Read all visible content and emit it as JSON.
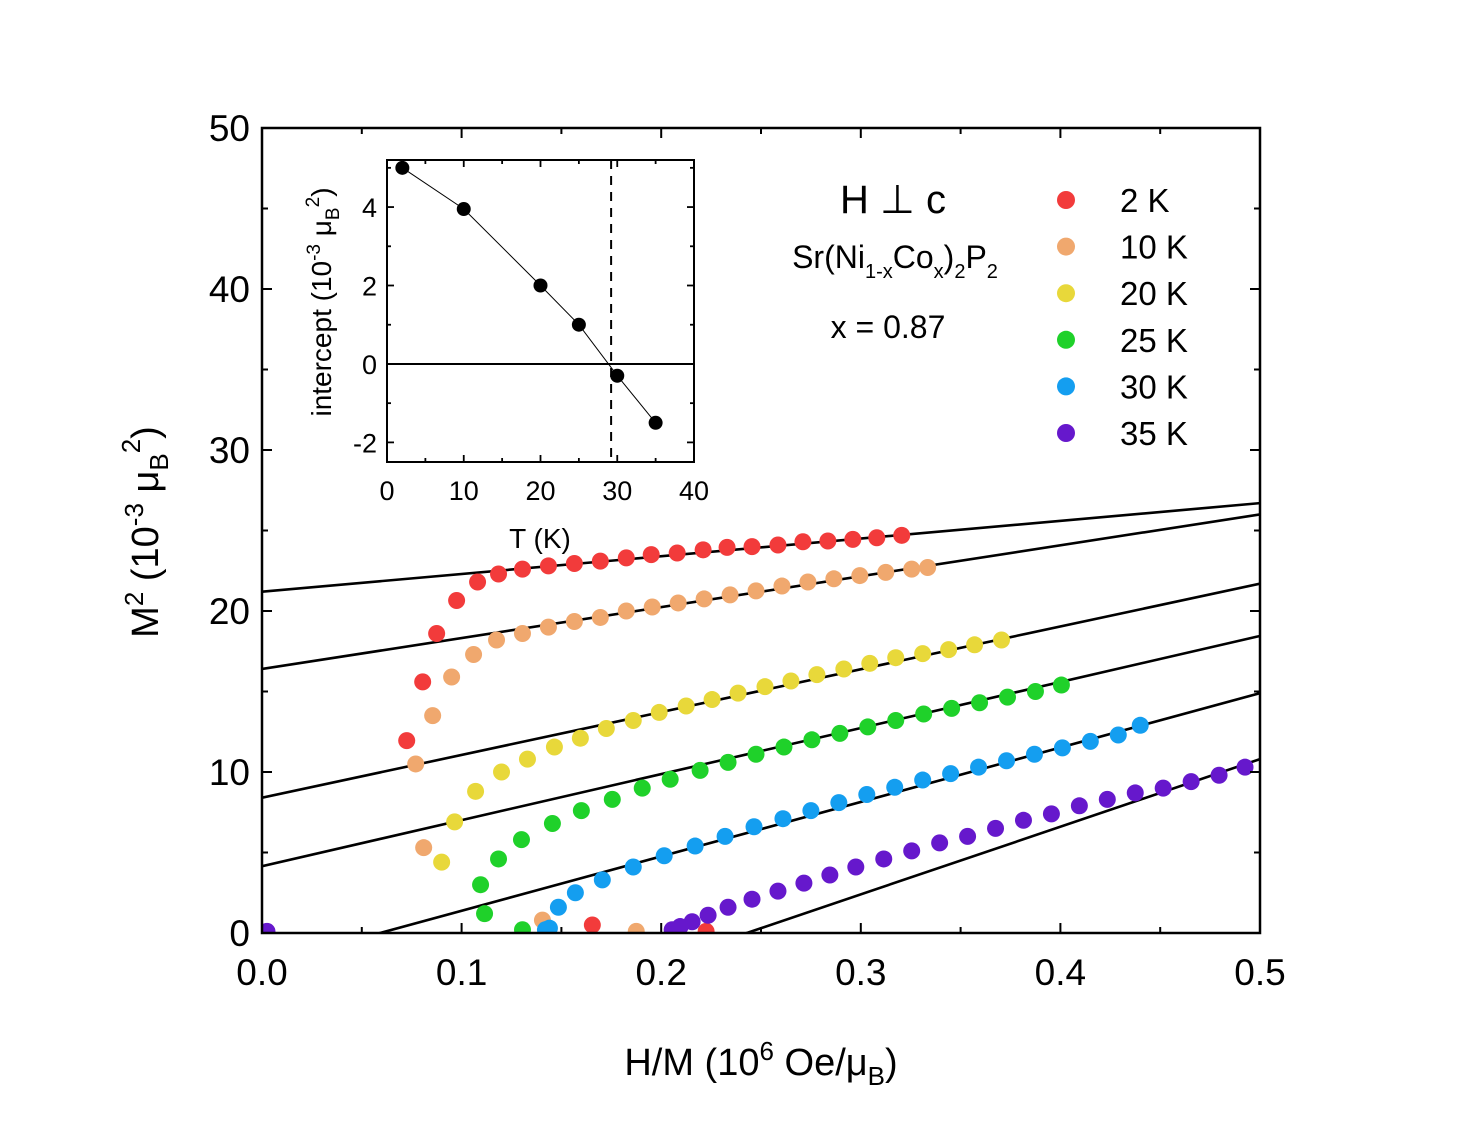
{
  "chart_data": [
    {
      "type": "scatter",
      "xlabel": {
        "text": "H/M (10",
        "sup": "6",
        "unit_pre": " Oe/μ",
        "unit_sub": "B",
        "unit_post": ")"
      },
      "ylabel": {
        "base": "M",
        "sup1": "2",
        "mid": " (10",
        "sup2": "-3",
        "mu": " μ",
        "sub": "B",
        "sup3": "2",
        "post": ")"
      },
      "xlim": [
        0,
        0.5
      ],
      "ylim": [
        0,
        50
      ],
      "xticks": [
        0.0,
        0.1,
        0.2,
        0.3,
        0.4,
        0.5
      ],
      "xtick_labels": [
        "0.0",
        "0.1",
        "0.2",
        "0.3",
        "0.4",
        "0.5"
      ],
      "yticks": [
        0,
        10,
        20,
        30,
        40,
        50
      ],
      "ytick_labels": [
        "0",
        "10",
        "20",
        "30",
        "40",
        "50"
      ],
      "grid": false,
      "legend_placement": "top-right",
      "annotations": {
        "field": "H ⊥ c",
        "formula": {
          "a": "Sr(Ni",
          "b": "1-x",
          "c": "Co",
          "d": "x",
          "e": ")",
          "f": "2",
          "g": "P",
          "h": "2"
        },
        "composition": "x = 0.87"
      },
      "series": [
        {
          "name": "2 K",
          "color": "#f23b3b",
          "x": [
            0.0725,
            0.0805,
            0.0875,
            0.0975,
            0.108,
            0.1185,
            0.1305,
            0.1435,
            0.1565,
            0.1695,
            0.1825,
            0.195,
            0.208,
            0.221,
            0.233,
            0.2455,
            0.2585,
            0.271,
            0.2835,
            0.296,
            0.308,
            0.3205,
            0.1655,
            0.2225
          ],
          "y": [
            11.95,
            15.6,
            18.6,
            20.65,
            21.8,
            22.3,
            22.6,
            22.8,
            22.95,
            23.1,
            23.3,
            23.5,
            23.6,
            23.8,
            23.95,
            24.0,
            24.1,
            24.3,
            24.35,
            24.45,
            24.55,
            24.7,
            0.5,
            0.1
          ],
          "fit": {
            "y0": 21.2,
            "slope": 11.0
          }
        },
        {
          "name": "10 K",
          "color": "#f0a86e",
          "x": [
            0.077,
            0.0855,
            0.095,
            0.106,
            0.1175,
            0.1305,
            0.1435,
            0.1565,
            0.1695,
            0.1825,
            0.1955,
            0.2085,
            0.2215,
            0.2345,
            0.2475,
            0.2605,
            0.2735,
            0.2865,
            0.2995,
            0.3125,
            0.3255,
            0.3335,
            0.081,
            0.1405,
            0.1875
          ],
          "y": [
            10.5,
            13.5,
            15.9,
            17.3,
            18.2,
            18.6,
            19.0,
            19.35,
            19.6,
            20.0,
            20.25,
            20.5,
            20.75,
            21.0,
            21.25,
            21.55,
            21.8,
            22.0,
            22.2,
            22.4,
            22.6,
            22.7,
            5.3,
            0.8,
            0.1
          ],
          "fit": {
            "y0": 16.4,
            "slope": 19.2
          }
        },
        {
          "name": "20 K",
          "color": "#e8d83a",
          "x": [
            0.09,
            0.0965,
            0.107,
            0.12,
            0.133,
            0.1465,
            0.1595,
            0.1725,
            0.186,
            0.199,
            0.2125,
            0.2255,
            0.2385,
            0.252,
            0.265,
            0.278,
            0.2915,
            0.3045,
            0.3175,
            0.331,
            0.344,
            0.357,
            0.3705
          ],
          "y": [
            4.4,
            6.9,
            8.8,
            10.0,
            10.8,
            11.55,
            12.1,
            12.7,
            13.2,
            13.7,
            14.1,
            14.5,
            14.9,
            15.3,
            15.65,
            16.05,
            16.4,
            16.75,
            17.1,
            17.35,
            17.6,
            17.9,
            18.2
          ],
          "fit": {
            "y0": 8.4,
            "slope": 26.6
          }
        },
        {
          "name": "25 K",
          "color": "#1fd12a",
          "x": [
            0.1115,
            0.1095,
            0.1185,
            0.13,
            0.1455,
            0.16,
            0.1755,
            0.1905,
            0.2045,
            0.2195,
            0.2335,
            0.2475,
            0.2615,
            0.2755,
            0.2895,
            0.3035,
            0.3175,
            0.3315,
            0.3455,
            0.3595,
            0.3735,
            0.3875,
            0.4005,
            0.1305
          ],
          "y": [
            1.2,
            3.0,
            4.6,
            5.8,
            6.8,
            7.6,
            8.3,
            9.0,
            9.55,
            10.1,
            10.6,
            11.1,
            11.55,
            12.0,
            12.4,
            12.8,
            13.2,
            13.6,
            13.95,
            14.3,
            14.65,
            15.0,
            15.4,
            0.2
          ],
          "fit": {
            "y0": 4.15,
            "slope": 28.6
          }
        },
        {
          "name": "30 K",
          "color": "#149ef0",
          "x": [
            0.144,
            0.1485,
            0.157,
            0.1705,
            0.186,
            0.2015,
            0.217,
            0.232,
            0.2465,
            0.261,
            0.275,
            0.289,
            0.303,
            0.317,
            0.331,
            0.345,
            0.359,
            0.373,
            0.387,
            0.401,
            0.415,
            0.429,
            0.44,
            0.142
          ],
          "y": [
            0.3,
            1.6,
            2.5,
            3.3,
            4.1,
            4.8,
            5.4,
            6.0,
            6.6,
            7.1,
            7.6,
            8.1,
            8.6,
            9.05,
            9.5,
            9.9,
            10.3,
            10.7,
            11.1,
            11.5,
            11.9,
            12.3,
            12.9,
            0.2
          ],
          "fit": {
            "y0": -2.0,
            "slope": 33.8
          }
        },
        {
          "name": "35 K",
          "color": "#6618cc",
          "x": [
            0.0025,
            0.2055,
            0.2095,
            0.2155,
            0.2235,
            0.2335,
            0.2455,
            0.2585,
            0.2715,
            0.2845,
            0.2975,
            0.3115,
            0.3255,
            0.3395,
            0.3535,
            0.3675,
            0.3815,
            0.3955,
            0.4095,
            0.4235,
            0.4375,
            0.4515,
            0.4655,
            0.4795,
            0.4925
          ],
          "y": [
            0.1,
            0.2,
            0.4,
            0.7,
            1.1,
            1.6,
            2.1,
            2.6,
            3.1,
            3.6,
            4.1,
            4.6,
            5.1,
            5.6,
            6.0,
            6.5,
            7.0,
            7.4,
            7.9,
            8.3,
            8.7,
            9.0,
            9.4,
            9.8,
            10.3
          ],
          "fit": {
            "y0": -10.2,
            "slope": 42.0
          }
        }
      ]
    },
    {
      "type": "line",
      "inset": true,
      "xlabel": "T (K)",
      "ylabel": {
        "pre": "intercept (10",
        "sup": "-3",
        "mu": " μ",
        "sub": "B",
        "sup2": "2",
        "post": ")"
      },
      "xlim": [
        0,
        40
      ],
      "ylim": [
        -2.5,
        5.2
      ],
      "xticks": [
        0,
        10,
        20,
        30,
        40
      ],
      "xtick_labels": [
        "0",
        "10",
        "20",
        "30",
        "40"
      ],
      "yticks": [
        -2,
        0,
        2,
        4
      ],
      "ytick_labels": [
        "-2",
        "0",
        "2",
        "4"
      ],
      "zero_line": true,
      "vline_x": 29.2,
      "series": [
        {
          "x": [
            2,
            10,
            20,
            25,
            30,
            35
          ],
          "y": [
            5.0,
            3.95,
            2.0,
            1.0,
            -0.3,
            -1.5
          ],
          "color": "#000000"
        }
      ]
    }
  ]
}
